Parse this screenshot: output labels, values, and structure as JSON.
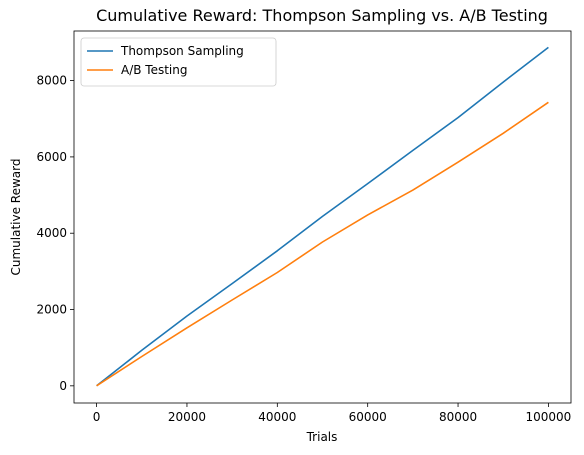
{
  "chart_data": {
    "type": "line",
    "title": "Cumulative Reward: Thompson Sampling vs. A/B Testing",
    "xlabel": "Trials",
    "ylabel": "Cumulative Reward",
    "xlim": [
      -5000,
      105000
    ],
    "ylim": [
      -450,
      9300
    ],
    "xticks": [
      0,
      20000,
      40000,
      60000,
      80000,
      100000
    ],
    "yticks": [
      0,
      2000,
      4000,
      6000,
      8000
    ],
    "grid": false,
    "legend": "top-left",
    "series": [
      {
        "name": "Thompson Sampling",
        "color": "#1f77b4",
        "x": [
          0,
          10000,
          20000,
          30000,
          40000,
          50000,
          60000,
          70000,
          80000,
          90000,
          100000
        ],
        "y": [
          0,
          930,
          1830,
          2680,
          3540,
          4440,
          5300,
          6170,
          7030,
          7960,
          8870
        ]
      },
      {
        "name": "A/B Testing",
        "color": "#ff7f0e",
        "x": [
          0,
          10000,
          20000,
          30000,
          40000,
          50000,
          60000,
          70000,
          80000,
          90000,
          100000
        ],
        "y": [
          0,
          770,
          1520,
          2250,
          2970,
          3770,
          4480,
          5130,
          5860,
          6620,
          7430
        ]
      }
    ]
  }
}
